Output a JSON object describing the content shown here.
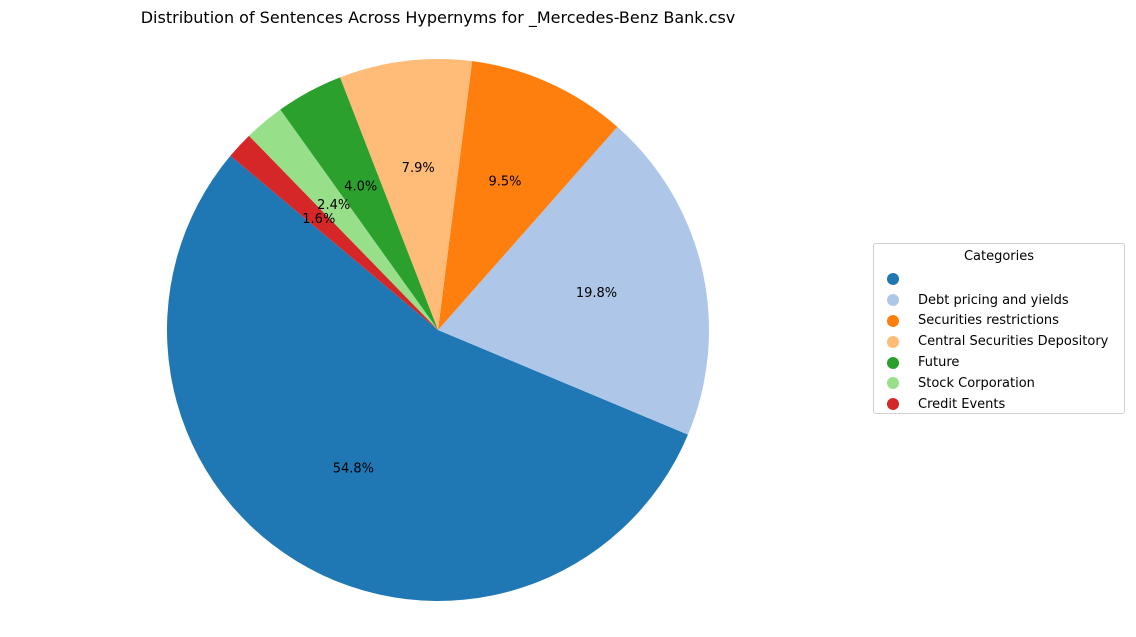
{
  "chart_data": {
    "type": "pie",
    "title": "Distribution of Sentences Across Hypernyms for _Mercedes-Benz Bank.csv",
    "legend_title": "Categories",
    "legend_position": "center-right",
    "start_angle_deg": 140,
    "direction": "counterclockwise",
    "slices": [
      {
        "label": "",
        "value": 54.8,
        "pct_label": "54.8%",
        "color": "#1f77b4"
      },
      {
        "label": "Debt pricing and yields",
        "value": 19.8,
        "pct_label": "19.8%",
        "color": "#aec7e8"
      },
      {
        "label": "Securities restrictions",
        "value": 9.5,
        "pct_label": "9.5%",
        "color": "#ff7f0e"
      },
      {
        "label": "Central Securities Depository",
        "value": 7.9,
        "pct_label": "7.9%",
        "color": "#ffbb78"
      },
      {
        "label": "Future",
        "value": 4.0,
        "pct_label": "4.0%",
        "color": "#2ca02c"
      },
      {
        "label": "Stock Corporation",
        "value": 2.4,
        "pct_label": "2.4%",
        "color": "#98df8a"
      },
      {
        "label": "Credit Events",
        "value": 1.6,
        "pct_label": "1.6%",
        "color": "#d62728"
      }
    ]
  }
}
